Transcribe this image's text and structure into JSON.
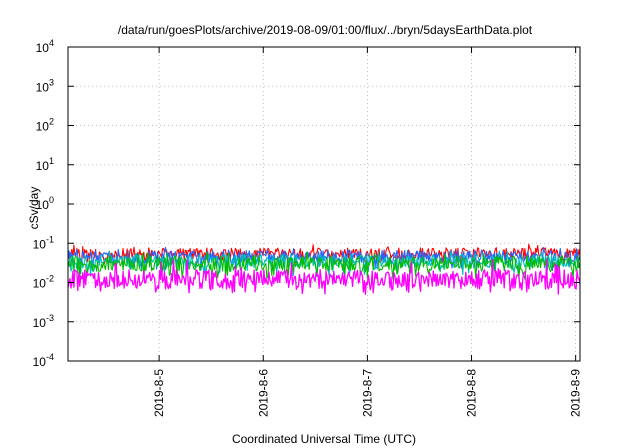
{
  "chart_data": {
    "type": "line",
    "title": "/data/run/goesPlots/archive/2019-08-09/01:00/flux/../bryn/5daysEarthData.plot",
    "xlabel": "Coordinated Universal Time (UTC)",
    "ylabel": "cSv/day",
    "yscale": "log",
    "ylim": [
      0.0001,
      10000
    ],
    "yticks": [
      {
        "base": "10",
        "exp": "-4",
        "value": 0.0001
      },
      {
        "base": "10",
        "exp": "-3",
        "value": 0.001
      },
      {
        "base": "10",
        "exp": "-2",
        "value": 0.01
      },
      {
        "base": "10",
        "exp": "-1",
        "value": 0.1
      },
      {
        "base": "10",
        "exp": "0",
        "value": 1
      },
      {
        "base": "10",
        "exp": "1",
        "value": 10
      },
      {
        "base": "10",
        "exp": "2",
        "value": 100
      },
      {
        "base": "10",
        "exp": "3",
        "value": 1000
      },
      {
        "base": "10",
        "exp": "4",
        "value": 10000
      }
    ],
    "xlim": [
      "2019-08-04 03:00",
      "2019-08-09 01:00"
    ],
    "xticks": [
      "2019-8-5",
      "2019-8-6",
      "2019-8-7",
      "2019-8-8",
      "2019-8-9"
    ],
    "grid": true,
    "series": [
      {
        "color": "#ff0000",
        "typical": 0.055,
        "min": 0.03,
        "max": 0.1
      },
      {
        "color": "#00bb00",
        "typical": 0.03,
        "min": 0.012,
        "max": 0.06
      },
      {
        "color": "#00bbbb",
        "typical": 0.035,
        "min": 0.015,
        "max": 0.065
      },
      {
        "color": "#ff00ff",
        "typical": 0.012,
        "min": 0.005,
        "max": 0.04
      },
      {
        "color": "#2266ff",
        "typical": 0.045,
        "min": 0.02,
        "max": 0.08
      }
    ]
  }
}
